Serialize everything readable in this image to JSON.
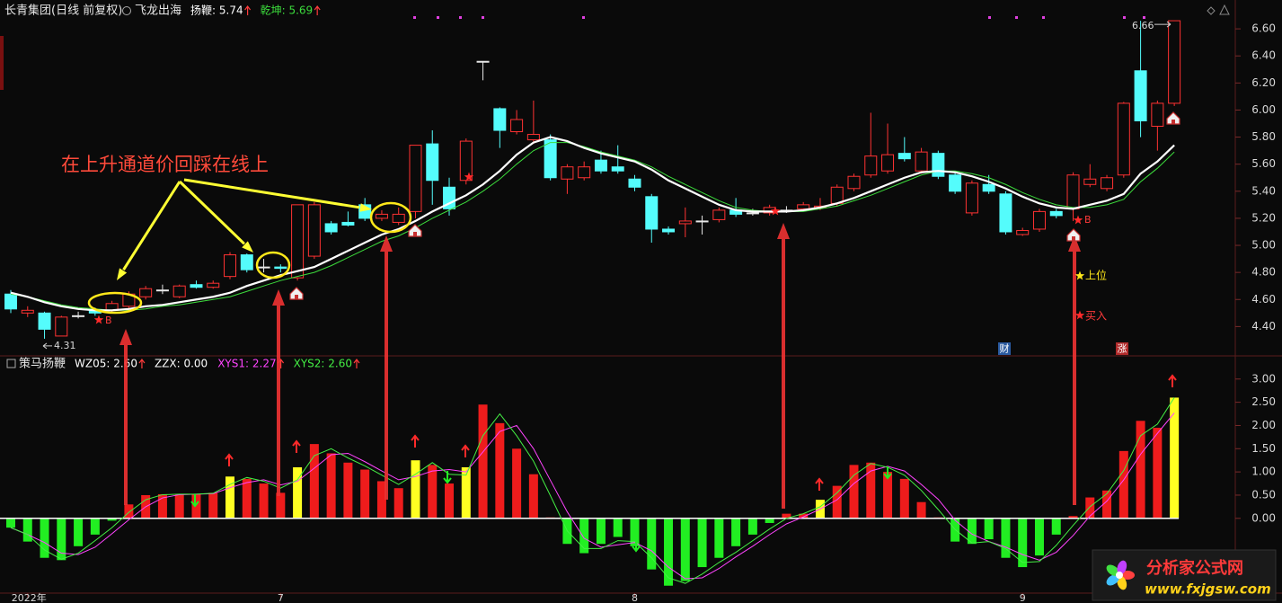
{
  "chart_data": [
    {
      "type": "candlestick",
      "title": "长青集团(日线 前复权)",
      "indicator": "飞龙出海",
      "categories": [
        null,
        "2022年",
        null,
        null,
        null,
        null,
        null,
        null,
        null,
        null,
        null,
        null,
        null,
        null,
        null,
        null,
        "7",
        null,
        null,
        null,
        null,
        null,
        null,
        null,
        null,
        null,
        null,
        null,
        null,
        null,
        null,
        null,
        null,
        null,
        null,
        null,
        null,
        "8",
        null,
        null,
        null,
        null,
        null,
        null,
        null,
        null,
        null,
        null,
        null,
        null,
        null,
        null,
        null,
        null,
        null,
        null,
        null,
        null,
        null,
        null,
        "9",
        null,
        null,
        null,
        null,
        null,
        null,
        null,
        null,
        null
      ],
      "open": [
        4.64,
        4.5,
        4.5,
        4.33,
        4.48,
        4.52,
        4.52,
        4.55,
        4.62,
        4.67,
        4.62,
        4.71,
        4.69,
        4.77,
        4.93,
        4.84,
        4.84,
        4.76,
        4.92,
        5.16,
        5.17,
        5.3,
        5.2,
        5.17,
        5.25,
        5.75,
        5.43,
        5.48,
        6.36,
        6.01,
        5.84,
        5.78,
        5.78,
        5.49,
        5.5,
        5.63,
        5.58,
        5.49,
        5.36,
        5.12,
        5.16,
        5.18,
        5.19,
        5.26,
        5.24,
        5.24,
        5.26,
        5.27,
        5.28,
        5.31,
        5.42,
        5.52,
        5.55,
        5.68,
        5.55,
        5.68,
        5.52,
        5.24,
        5.45,
        5.38,
        5.08,
        5.12,
        5.25,
        5.27,
        5.45,
        5.42,
        5.52,
        6.29,
        5.88,
        6.05
      ],
      "high": [
        4.67,
        4.55,
        4.51,
        4.48,
        4.51,
        4.54,
        4.59,
        4.66,
        4.7,
        4.71,
        4.71,
        4.74,
        4.74,
        4.95,
        4.94,
        4.9,
        4.86,
        5.3,
        5.32,
        5.18,
        5.25,
        5.35,
        5.26,
        5.28,
        5.74,
        5.85,
        5.5,
        5.79,
        6.36,
        6.02,
        6.0,
        6.07,
        5.82,
        5.6,
        5.62,
        5.7,
        5.74,
        5.52,
        5.38,
        5.14,
        5.28,
        5.22,
        5.28,
        5.35,
        5.27,
        5.3,
        5.29,
        5.32,
        5.35,
        5.45,
        5.53,
        5.98,
        5.9,
        5.8,
        5.72,
        5.7,
        5.54,
        5.48,
        5.52,
        5.4,
        5.13,
        5.27,
        5.27,
        5.54,
        5.6,
        5.52,
        6.06,
        6.66,
        6.07,
        6.66
      ],
      "low": [
        4.5,
        4.47,
        4.31,
        4.33,
        4.46,
        4.48,
        4.5,
        4.53,
        4.6,
        4.64,
        4.61,
        4.68,
        4.68,
        4.75,
        4.8,
        4.8,
        4.8,
        4.74,
        4.9,
        5.08,
        5.14,
        5.18,
        5.18,
        5.15,
        5.2,
        5.3,
        5.22,
        5.45,
        6.22,
        5.72,
        5.82,
        5.75,
        5.48,
        5.38,
        5.48,
        5.53,
        5.53,
        5.4,
        5.02,
        5.08,
        5.06,
        5.08,
        5.17,
        5.21,
        5.22,
        5.22,
        5.24,
        5.25,
        5.26,
        5.29,
        5.4,
        5.5,
        5.53,
        5.62,
        5.53,
        5.49,
        5.38,
        5.22,
        5.38,
        5.08,
        5.07,
        5.1,
        5.2,
        5.18,
        5.43,
        5.4,
        5.5,
        5.8,
        5.7,
        6.03
      ],
      "close": [
        4.53,
        4.52,
        4.38,
        4.47,
        4.48,
        4.5,
        4.57,
        4.64,
        4.68,
        4.67,
        4.7,
        4.69,
        4.72,
        4.93,
        4.82,
        4.84,
        4.83,
        5.3,
        5.3,
        5.1,
        5.15,
        5.2,
        5.23,
        5.23,
        5.74,
        5.48,
        5.27,
        5.77,
        6.36,
        5.85,
        5.93,
        5.82,
        5.5,
        5.58,
        5.58,
        5.55,
        5.55,
        5.43,
        5.12,
        5.1,
        5.18,
        5.18,
        5.26,
        5.23,
        5.24,
        5.28,
        5.26,
        5.3,
        5.29,
        5.43,
        5.51,
        5.66,
        5.67,
        5.64,
        5.69,
        5.51,
        5.4,
        5.46,
        5.4,
        5.1,
        5.11,
        5.25,
        5.22,
        5.52,
        5.49,
        5.5,
        6.05,
        5.92,
        6.05,
        6.66
      ],
      "up_color": "#ff3232",
      "down_color": "#54fcfc",
      "flat_color": "#e8e8e8",
      "series": [
        {
          "name": "扬鞭: 5.74",
          "color": "#ffffff",
          "values": [
            4.65,
            4.62,
            4.58,
            4.55,
            4.53,
            4.52,
            4.52,
            4.53,
            4.55,
            4.56,
            4.58,
            4.6,
            4.62,
            4.65,
            4.7,
            4.74,
            4.78,
            4.81,
            4.84,
            4.9,
            4.96,
            5.02,
            5.08,
            5.12,
            5.18,
            5.25,
            5.31,
            5.37,
            5.45,
            5.55,
            5.67,
            5.76,
            5.8,
            5.77,
            5.72,
            5.68,
            5.65,
            5.62,
            5.56,
            5.48,
            5.42,
            5.36,
            5.3,
            5.26,
            5.25,
            5.25,
            5.25,
            5.26,
            5.28,
            5.31,
            5.35,
            5.4,
            5.45,
            5.5,
            5.54,
            5.55,
            5.54,
            5.51,
            5.47,
            5.42,
            5.36,
            5.31,
            5.28,
            5.27,
            5.3,
            5.33,
            5.38,
            5.53,
            5.62,
            5.74
          ]
        },
        {
          "name": "乾坤: 5.69",
          "color": "#3cdc3c",
          "values": [
            4.64,
            4.62,
            4.59,
            4.56,
            4.54,
            4.53,
            4.52,
            4.52,
            4.53,
            4.55,
            4.56,
            4.58,
            4.6,
            4.62,
            4.66,
            4.7,
            4.74,
            4.77,
            4.8,
            4.85,
            4.91,
            4.97,
            5.03,
            5.07,
            5.13,
            5.2,
            5.26,
            5.32,
            5.4,
            5.49,
            5.6,
            5.7,
            5.76,
            5.76,
            5.73,
            5.69,
            5.66,
            5.63,
            5.58,
            5.51,
            5.45,
            5.39,
            5.33,
            5.28,
            5.26,
            5.25,
            5.25,
            5.25,
            5.27,
            5.29,
            5.33,
            5.37,
            5.42,
            5.47,
            5.52,
            5.55,
            5.55,
            5.53,
            5.5,
            5.45,
            5.39,
            5.34,
            5.3,
            5.28,
            5.28,
            5.3,
            5.34,
            5.47,
            5.57,
            5.69
          ]
        }
      ],
      "extremes": [
        {
          "value": 4.31,
          "label": "4.31"
        },
        {
          "value": 6.66,
          "label": "6.66"
        }
      ],
      "ylim": [
        4.19,
        6.78
      ],
      "yticks": [
        {
          "value": 4.4,
          "label": "4.40"
        },
        {
          "value": 4.6,
          "label": "4.60"
        },
        {
          "value": 4.8,
          "label": "4.80"
        },
        {
          "value": 5.0,
          "label": "5.00"
        },
        {
          "value": 5.2,
          "label": "5.20"
        },
        {
          "value": 5.4,
          "label": "5.40"
        },
        {
          "value": 5.6,
          "label": "5.60"
        },
        {
          "value": 5.8,
          "label": "5.80"
        },
        {
          "value": 6.0,
          "label": "6.00"
        },
        {
          "value": 6.2,
          "label": "6.20"
        },
        {
          "value": 6.4,
          "label": "6.40"
        },
        {
          "value": 6.6,
          "label": "6.60"
        }
      ],
      "callout": "在上升通道价回踩在线上",
      "markers": [
        "B",
        "B",
        "上位",
        "买入"
      ],
      "events": [
        "财",
        "涨"
      ]
    },
    {
      "type": "bar",
      "title": "策马扬鞭",
      "series": [
        {
          "name": "WZ05: 2.60",
          "color": "#ffffff",
          "values": [
            -0.2,
            -0.5,
            -0.85,
            -0.9,
            -0.6,
            -0.35,
            -0.05,
            0.3,
            0.5,
            0.52,
            0.52,
            0.52,
            0.55,
            0.9,
            0.85,
            0.75,
            0.55,
            1.1,
            1.6,
            1.4,
            1.2,
            1.05,
            0.8,
            0.65,
            1.25,
            1.15,
            0.75,
            1.1,
            2.45,
            2.05,
            1.5,
            0.95,
            0.02,
            -0.55,
            -0.75,
            -0.55,
            -0.4,
            -0.6,
            -1.1,
            -1.45,
            -1.35,
            -1.05,
            -0.85,
            -0.6,
            -0.35,
            -0.1,
            0.1,
            0.1,
            0.4,
            0.7,
            1.15,
            1.2,
            1.0,
            0.85,
            0.35,
            0.02,
            -0.5,
            -0.55,
            -0.45,
            -0.85,
            -1.05,
            -0.8,
            -0.35,
            0.05,
            0.45,
            0.6,
            1.45,
            2.1,
            1.95,
            2.6
          ],
          "colors": [
            "#22ee22",
            "#22ee22",
            "#22ee22",
            "#22ee22",
            "#22ee22",
            "#22ee22",
            "#22ee22",
            "#ee1c1c",
            "#ee1c1c",
            "#ee1c1c",
            "#ee1c1c",
            "#ee1c1c",
            "#ee1c1c",
            "#ffff22",
            "#ee1c1c",
            "#ee1c1c",
            "#ee1c1c",
            "#ffff22",
            "#ee1c1c",
            "#ee1c1c",
            "#ee1c1c",
            "#ee1c1c",
            "#ee1c1c",
            "#ee1c1c",
            "#ffff22",
            "#ee1c1c",
            "#ee1c1c",
            "#ffff22",
            "#ee1c1c",
            "#ee1c1c",
            "#ee1c1c",
            "#ee1c1c",
            "#ee1c1c",
            "#22ee22",
            "#22ee22",
            "#22ee22",
            "#22ee22",
            "#22ee22",
            "#22ee22",
            "#22ee22",
            "#22ee22",
            "#22ee22",
            "#22ee22",
            "#22ee22",
            "#22ee22",
            "#22ee22",
            "#ee1c1c",
            "#ee1c1c",
            "#ffff22",
            "#ee1c1c",
            "#ee1c1c",
            "#ee1c1c",
            "#ee1c1c",
            "#ee1c1c",
            "#ee1c1c",
            "#ee1c1c",
            "#22ee22",
            "#22ee22",
            "#22ee22",
            "#22ee22",
            "#22ee22",
            "#22ee22",
            "#22ee22",
            "#ee1c1c",
            "#ee1c1c",
            "#ee1c1c",
            "#ee1c1c",
            "#ee1c1c",
            "#ee1c1c",
            "#ffff22"
          ]
        },
        {
          "name": "XYS1: 2.27",
          "color": "#ff44ff",
          "values": [
            -0.2,
            -0.35,
            -0.52,
            -0.75,
            -0.78,
            -0.62,
            -0.33,
            -0.03,
            0.25,
            0.44,
            0.51,
            0.52,
            0.53,
            0.66,
            0.77,
            0.83,
            0.72,
            0.8,
            1.08,
            1.37,
            1.4,
            1.22,
            1.02,
            0.83,
            0.9,
            1.02,
            1.05,
            1.0,
            1.43,
            1.87,
            2.0,
            1.5,
            0.82,
            0.14,
            -0.43,
            -0.62,
            -0.57,
            -0.52,
            -0.7,
            -1.05,
            -1.3,
            -1.28,
            -1.08,
            -0.83,
            -0.6,
            -0.35,
            -0.12,
            0.03,
            0.2,
            0.4,
            0.75,
            1.02,
            1.12,
            1.02,
            0.73,
            0.41,
            -0.04,
            -0.34,
            -0.5,
            -0.62,
            -0.78,
            -0.9,
            -0.73,
            -0.37,
            0.05,
            0.37,
            0.83,
            1.38,
            1.83,
            2.27
          ]
        },
        {
          "name": "XYS2: 2.60",
          "color": "#44ee44",
          "values": [
            -0.2,
            -0.35,
            -0.68,
            -0.88,
            -0.75,
            -0.48,
            -0.2,
            0.13,
            0.4,
            0.51,
            0.52,
            0.52,
            0.54,
            0.73,
            0.88,
            0.8,
            0.65,
            0.83,
            1.35,
            1.5,
            1.3,
            1.13,
            0.93,
            0.73,
            0.95,
            1.2,
            0.95,
            0.93,
            1.78,
            2.25,
            1.78,
            1.23,
            0.49,
            -0.27,
            -0.65,
            -0.65,
            -0.48,
            -0.5,
            -0.85,
            -1.28,
            -1.4,
            -1.2,
            -0.95,
            -0.73,
            -0.48,
            -0.23,
            0.0,
            0.1,
            0.25,
            0.55,
            0.93,
            1.18,
            1.1,
            0.93,
            0.6,
            0.19,
            -0.24,
            -0.53,
            -0.5,
            -0.65,
            -0.95,
            -0.93,
            -0.58,
            -0.15,
            0.25,
            0.53,
            1.03,
            1.78,
            2.03,
            2.6
          ]
        }
      ],
      "zzx": {
        "name": "ZZX: 0.00",
        "value": 0,
        "color": "#ffffff"
      },
      "ylim": [
        -1.61,
        3.46
      ],
      "yticks": [
        {
          "value": 0,
          "label": "0.00"
        },
        {
          "value": 0.5,
          "label": "0.50"
        },
        {
          "value": 1,
          "label": "1.00"
        },
        {
          "value": 1.5,
          "label": "1.50"
        },
        {
          "value": 2,
          "label": "2.00"
        },
        {
          "value": 2.5,
          "label": "2.50"
        },
        {
          "value": 3,
          "label": "3.00"
        }
      ]
    }
  ],
  "watermark": {
    "name": "分析家公式网",
    "url": "www.fxjgsw.com"
  }
}
